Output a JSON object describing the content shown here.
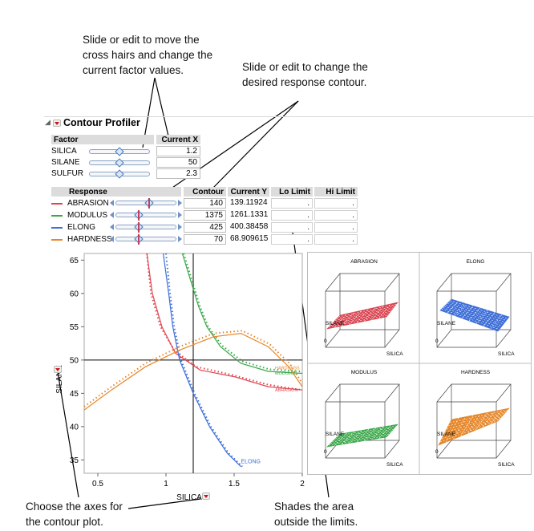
{
  "callouts": {
    "factor_values": "Slide or edit to move the\ncross hairs and change the\ncurrent factor values.",
    "response_contour": "Slide or edit to change the\ndesired response contour.",
    "axes_choice": "Choose the axes for\nthe contour plot.",
    "shades": "Shades the area\noutside the limits."
  },
  "panel": {
    "title": "Contour Profiler"
  },
  "factors": {
    "header": {
      "factor": "Factor",
      "current_x": "Current X"
    },
    "rows": [
      {
        "name": "SILICA",
        "value": "1.2",
        "level": 0.5
      },
      {
        "name": "SILANE",
        "value": "50",
        "level": 0.5
      },
      {
        "name": "SULFUR",
        "value": "2.3",
        "level": 0.5
      }
    ]
  },
  "responses": {
    "header": {
      "response": "Response",
      "contour": "Contour",
      "current_y": "Current Y",
      "lo_limit": "Lo Limit",
      "hi_limit": "Hi Limit"
    },
    "rows": [
      {
        "name": "ABRASION",
        "color": "#e0454f",
        "contour": "140",
        "current_y": "139.11924",
        "lo": ".",
        "hi": ".",
        "level": 0.55
      },
      {
        "name": "MODULUS",
        "color": "#3aa84a",
        "contour": "1375",
        "current_y": "1261.1331",
        "lo": ".",
        "hi": ".",
        "level": 0.38
      },
      {
        "name": "ELONG",
        "color": "#3f6fd8",
        "contour": "425",
        "current_y": "400.38458",
        "lo": ".",
        "hi": ".",
        "level": 0.38
      },
      {
        "name": "HARDNESS",
        "color": "#e6872a",
        "contour": "70",
        "current_y": "68.909615",
        "lo": ".",
        "hi": ".",
        "level": 0.38
      }
    ]
  },
  "contour_plot": {
    "xlabel": "SILICA",
    "ylabel": "SILANE",
    "x_ticks": [
      "0.5",
      "1",
      "1.5",
      "2"
    ],
    "y_ticks": [
      "35",
      "40",
      "45",
      "50",
      "55",
      "60",
      "65"
    ],
    "xlim": [
      0.4,
      2.0
    ],
    "ylim": [
      33,
      66
    ],
    "crosshair": {
      "x": 1.2,
      "y": 50
    },
    "curve_labels": {
      "elong": "ELONG",
      "hardness": "HARDNESS",
      "modulus": "MODULUS",
      "abrasion": "ABRASION"
    }
  },
  "surfaces": [
    {
      "title": "ABRASION",
      "color": "#d9414e",
      "ylabel": "SILANE",
      "xlabel": "SILICA",
      "origin": "0"
    },
    {
      "title": "ELONG",
      "color": "#3f6fd8",
      "ylabel": "SILANE",
      "xlabel": "SILICA",
      "origin": "0"
    },
    {
      "title": "MODULUS",
      "color": "#3aa84a",
      "ylabel": "SILANE",
      "xlabel": "SILICA",
      "origin": "0"
    },
    {
      "title": "HARDNESS",
      "color": "#e6872a",
      "ylabel": "SILANE",
      "xlabel": "SILICA",
      "origin": "0"
    }
  ]
}
